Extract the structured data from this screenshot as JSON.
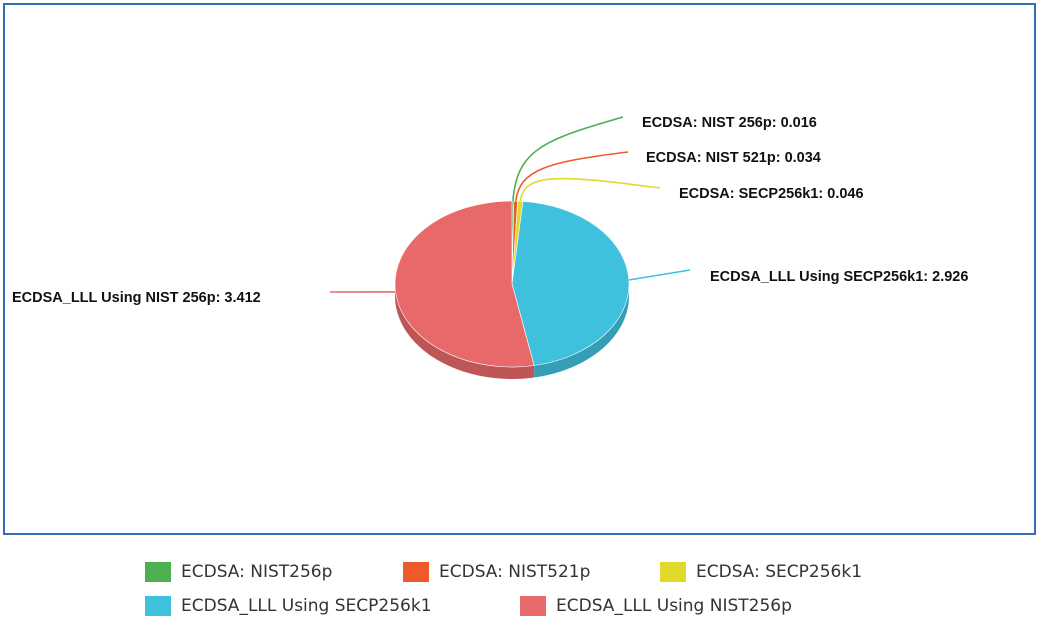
{
  "chart_data": {
    "type": "pie",
    "title": "",
    "slices": [
      {
        "name": "ECDSA: NIST256p",
        "value": 0.016,
        "color": "#4caf50",
        "label": "ECDSA: NIST 256p: 0.016"
      },
      {
        "name": "ECDSA: NIST521p",
        "value": 0.034,
        "color": "#ef5a2a",
        "label": "ECDSA: NIST 521p: 0.034"
      },
      {
        "name": "ECDSA: SECP256k1",
        "value": 0.046,
        "color": "#e0d92a",
        "label": "ECDSA: SECP256k1: 0.046"
      },
      {
        "name": "ECDSA_LLL Using SECP256k1",
        "value": 2.926,
        "color": "#3fc1de",
        "label": "ECDSA_LLL Using SECP256k1: 2.926"
      },
      {
        "name": "ECDSA_LLL Using NIST256p",
        "value": 3.412,
        "color": "#e8696a",
        "label": "ECDSA_LLL Using NIST 256p: 3.412"
      }
    ],
    "legend_position": "bottom"
  },
  "legend": {
    "items": [
      {
        "label": "ECDSA: NIST256p",
        "color": "#4caf50"
      },
      {
        "label": "ECDSA: NIST521p",
        "color": "#ef5a2a"
      },
      {
        "label": "ECDSA: SECP256k1",
        "color": "#e0d92a"
      },
      {
        "label": "ECDSA_LLL Using SECP256k1",
        "color": "#3fc1de"
      },
      {
        "label": "ECDSA_LLL Using NIST256p",
        "color": "#e8696a"
      }
    ]
  },
  "colors": {
    "frame": "#2f6fb2",
    "background": "#ffffff"
  }
}
